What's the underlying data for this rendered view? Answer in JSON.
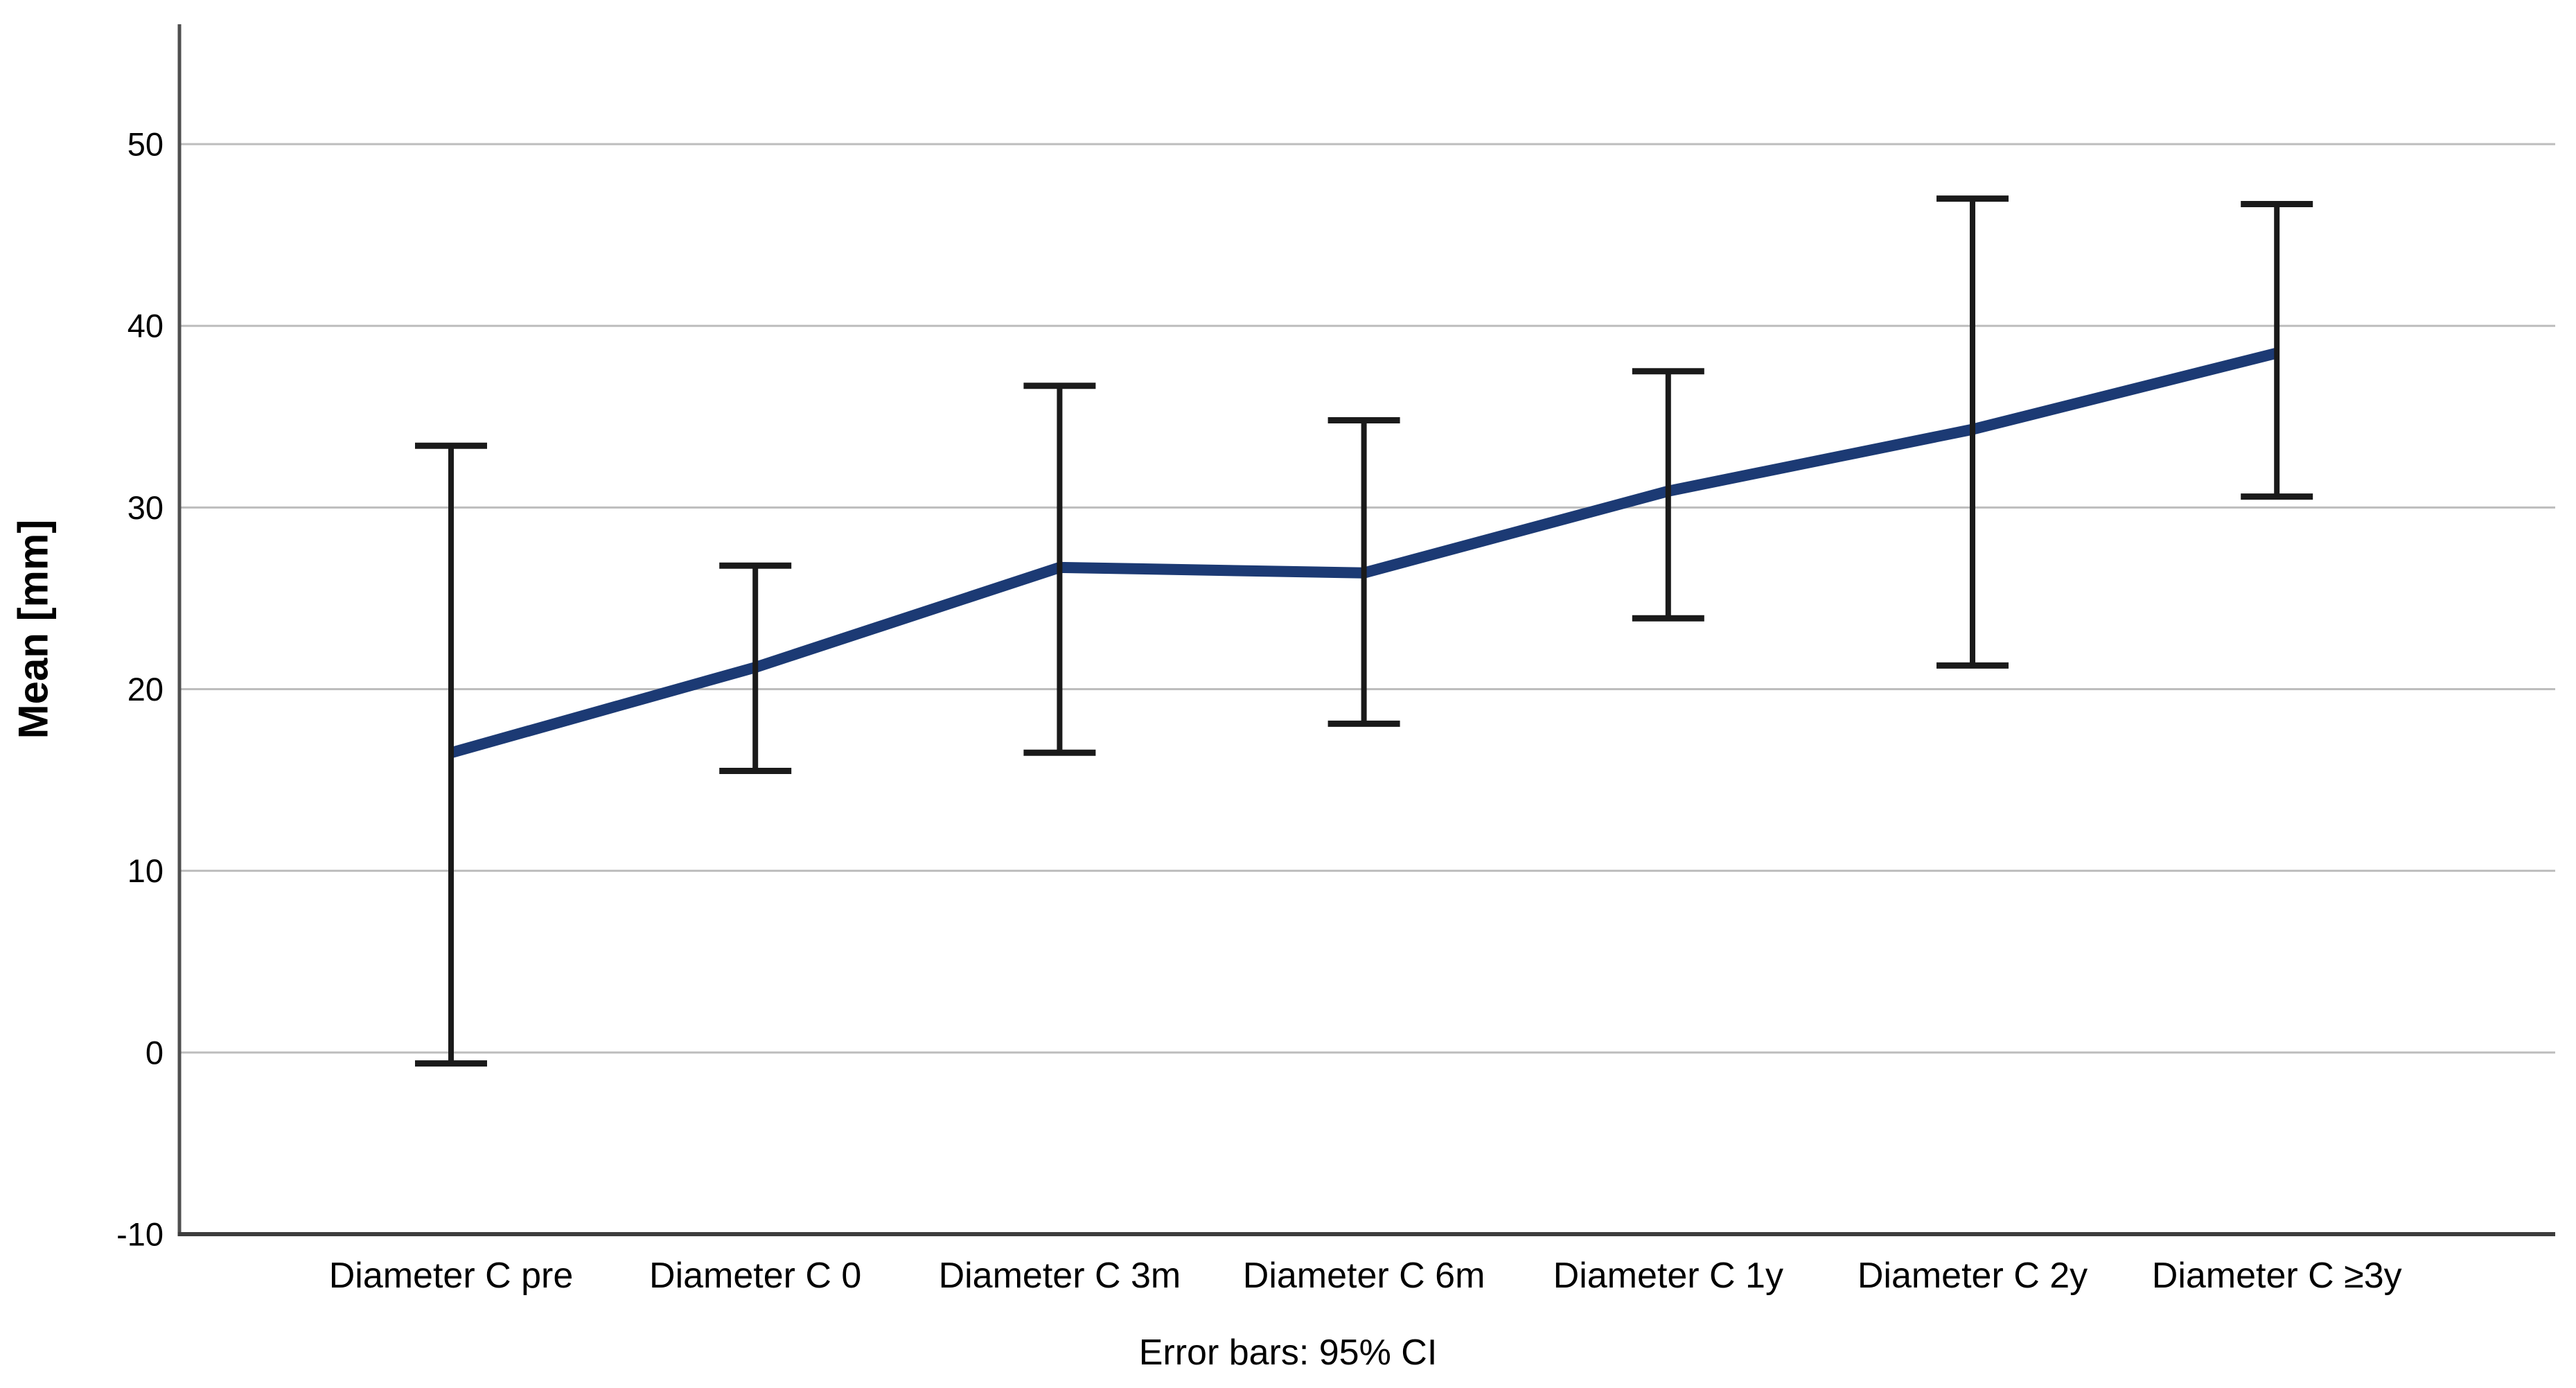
{
  "page": {
    "background": "#ffffff"
  },
  "chart_data": {
    "type": "line",
    "title": "",
    "xlabel": "",
    "ylabel": "Mean [mm]",
    "caption": "Error bars: 95% CI",
    "categories": [
      "Diameter C pre",
      "Diameter C 0",
      "Diameter C 3m",
      "Diameter C 6m",
      "Diameter C 1y",
      "Diameter C 2y",
      "Diameter C ≥3y"
    ],
    "series": [
      {
        "name": "Mean [mm]",
        "values": [
          16.5,
          21.2,
          26.7,
          26.4,
          30.9,
          34.3,
          38.5
        ],
        "ci_low": [
          -0.6,
          15.5,
          16.5,
          18.1,
          23.9,
          21.3,
          30.6
        ],
        "ci_high": [
          33.4,
          26.8,
          36.7,
          34.8,
          37.5,
          47.0,
          46.7
        ]
      }
    ],
    "error_bars": "95% CI",
    "markers": "none",
    "legend_position": "none",
    "grid": true,
    "yticks": [
      -10,
      0,
      10,
      20,
      30,
      40,
      50
    ],
    "ylim": [
      -10,
      56.6
    ],
    "colors": {
      "line": "#1c3a74",
      "error_bar": "#1a1a1a",
      "gridline": "#bdbdbd",
      "axis": "#4f4f4f",
      "text": "#000000"
    }
  }
}
